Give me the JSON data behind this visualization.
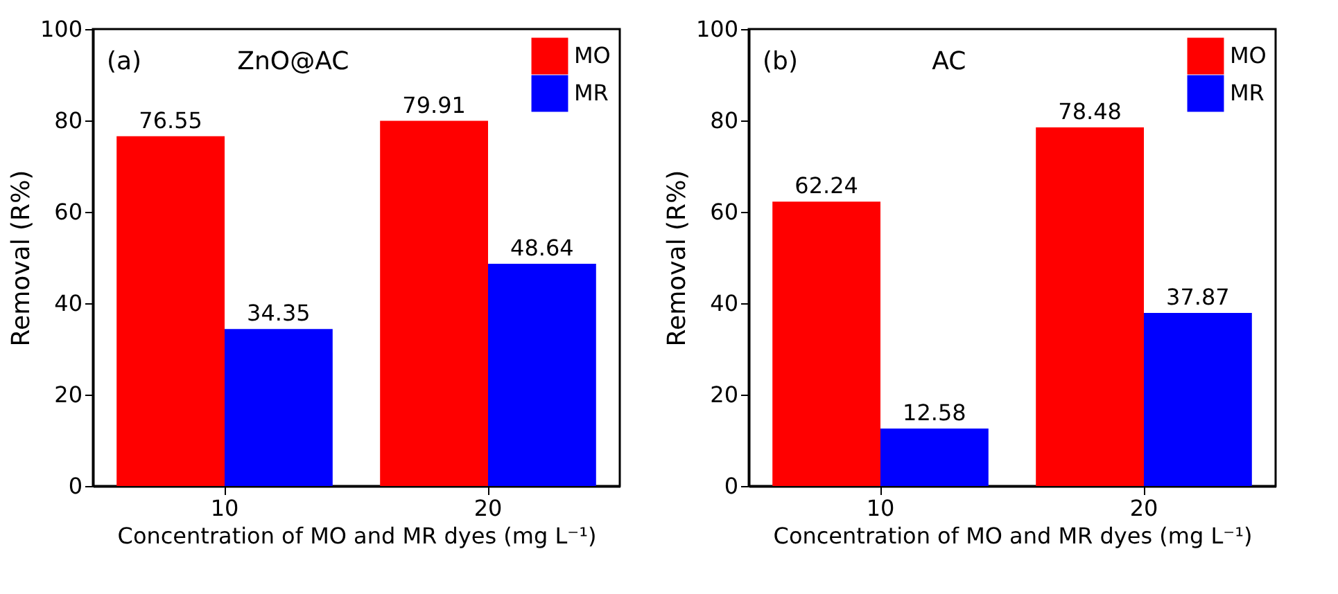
{
  "chart_data": [
    {
      "type": "bar",
      "annotations": [
        "(a)",
        "ZnO@AC"
      ],
      "xlabel": "Concentration of MO and MR dyes (mg L⁻¹)",
      "ylabel": "Removal (R%)",
      "categories": [
        "10",
        "20"
      ],
      "series": [
        {
          "name": "MO",
          "color": "#ff0000",
          "values": [
            76.55,
            79.91
          ]
        },
        {
          "name": "MR",
          "color": "#0000ff",
          "values": [
            34.35,
            48.64
          ]
        }
      ],
      "ylim": [
        0,
        100
      ],
      "yticks": [
        0,
        20,
        40,
        60,
        80,
        100
      ],
      "data_labels": true,
      "legend": "top right",
      "grid": false
    },
    {
      "type": "bar",
      "annotations": [
        "(b)",
        "AC"
      ],
      "xlabel": "Concentration of MO and MR dyes (mg L⁻¹)",
      "ylabel": "Removal (R%)",
      "categories": [
        "10",
        "20"
      ],
      "series": [
        {
          "name": "MO",
          "color": "#ff0000",
          "values": [
            62.24,
            78.48
          ]
        },
        {
          "name": "MR",
          "color": "#0000ff",
          "values": [
            12.58,
            37.87
          ]
        }
      ],
      "ylim": [
        0,
        100
      ],
      "yticks": [
        0,
        20,
        40,
        60,
        80,
        100
      ],
      "data_labels": true,
      "legend": "top right",
      "grid": false
    }
  ]
}
